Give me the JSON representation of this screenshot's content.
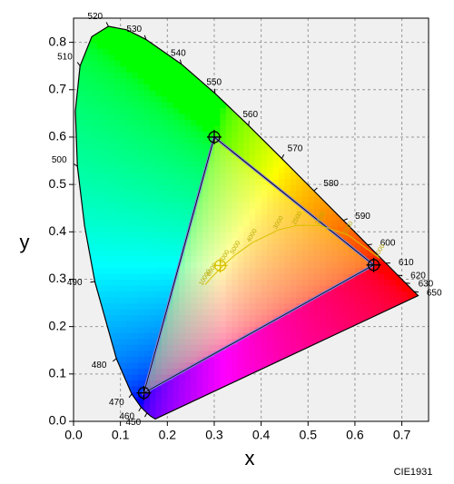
{
  "chart_data": {
    "type": "chromaticity",
    "xlabel": "x",
    "ylabel": "y",
    "caption": "CIE1931",
    "xlim": [
      0,
      0.757
    ],
    "ylim": [
      0,
      0.851
    ],
    "xticks": [
      {
        "value": 0,
        "label": "0.0"
      },
      0.1,
      0.2,
      0.3,
      0.4,
      0.5,
      0.6,
      0.7
    ],
    "yticks": [
      {
        "value": 0,
        "label": "0.0"
      },
      0.1,
      0.2,
      0.3,
      0.4,
      0.5,
      0.6,
      0.7,
      0.8
    ],
    "grid": true,
    "locus": {
      "x": [
        0.1741,
        0.1644,
        0.1566,
        0.144,
        0.1241,
        0.0913,
        0.0454,
        0.0235,
        0.0082,
        0.0039,
        0.0139,
        0.0389,
        0.0743,
        0.1142,
        0.1547,
        0.2296,
        0.3016,
        0.3731,
        0.4441,
        0.5125,
        0.5752,
        0.627,
        0.6658,
        0.6915,
        0.7079,
        0.726,
        0.7347
      ],
      "y": [
        0.005,
        0.0109,
        0.0177,
        0.0297,
        0.0578,
        0.1327,
        0.295,
        0.4127,
        0.5384,
        0.6548,
        0.7502,
        0.812,
        0.8338,
        0.8262,
        0.8059,
        0.7543,
        0.6923,
        0.6245,
        0.5547,
        0.4866,
        0.4242,
        0.3725,
        0.334,
        0.3083,
        0.292,
        0.274,
        0.2653
      ],
      "labels": [
        null,
        null,
        450,
        460,
        470,
        480,
        490,
        null,
        500,
        null,
        510,
        null,
        520,
        null,
        530,
        540,
        550,
        560,
        570,
        580,
        590,
        600,
        610,
        620,
        630,
        650,
        null
      ]
    },
    "planckian": {
      "x": [
        0.6528,
        0.5857,
        0.5267,
        0.477,
        0.4369,
        0.3805,
        0.3451,
        0.3221,
        0.2952,
        0.2807
      ],
      "y": [
        0.3444,
        0.3931,
        0.4133,
        0.4137,
        0.4041,
        0.3768,
        0.3516,
        0.3318,
        0.3048,
        0.2883
      ],
      "labels": [
        1000,
        1500,
        2000,
        2500,
        3000,
        4000,
        5000,
        6000,
        8000,
        10000
      ]
    },
    "gamut": {
      "x": [
        0.64,
        0.3,
        0.15
      ],
      "y": [
        0.33,
        0.6,
        0.06
      ],
      "color": "#8080e0"
    },
    "white_point": {
      "x": 0.3127,
      "y": 0.329
    }
  }
}
